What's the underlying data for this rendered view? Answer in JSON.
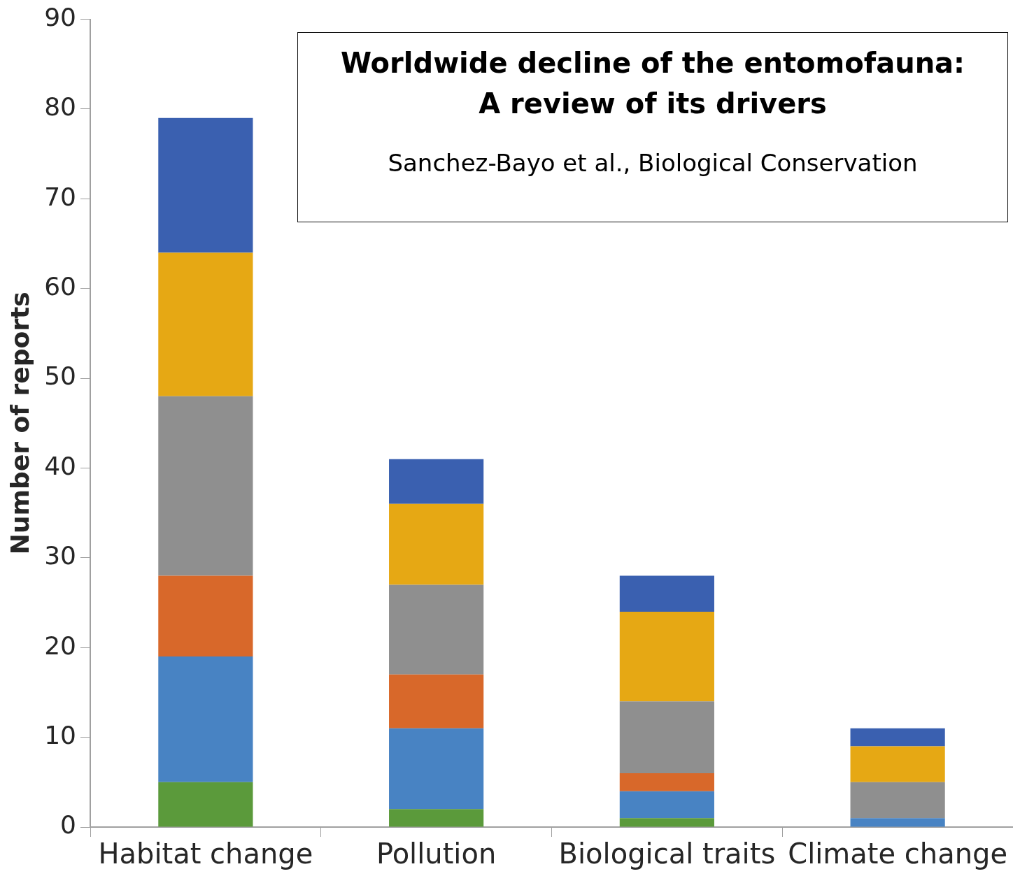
{
  "chart_data": {
    "type": "bar",
    "title": "Worldwide decline of the entomofauna:\nA review of its drivers",
    "subtitle": "Sanchez-Bayo et al., Biological Conservation",
    "ylabel": "Number of reports",
    "categories": [
      "Habitat change",
      "Pollution",
      "Biological traits",
      "Climate change"
    ],
    "stacked": true,
    "ylim": [
      0,
      90
    ],
    "yticks": [
      0,
      10,
      20,
      30,
      40,
      50,
      60,
      70,
      80,
      90
    ],
    "grid": false,
    "series": [
      {
        "color": "#5b9a3b",
        "values": [
          5,
          2,
          1,
          0
        ]
      },
      {
        "color": "#4883c3",
        "values": [
          14,
          9,
          3,
          1
        ]
      },
      {
        "color": "#d8682a",
        "values": [
          9,
          6,
          2,
          0
        ]
      },
      {
        "color": "#8f8f8f",
        "values": [
          20,
          10,
          8,
          4
        ]
      },
      {
        "color": "#e6a814",
        "values": [
          16,
          9,
          10,
          4
        ]
      },
      {
        "color": "#3a60b0",
        "values": [
          15,
          5,
          4,
          2
        ]
      }
    ]
  }
}
